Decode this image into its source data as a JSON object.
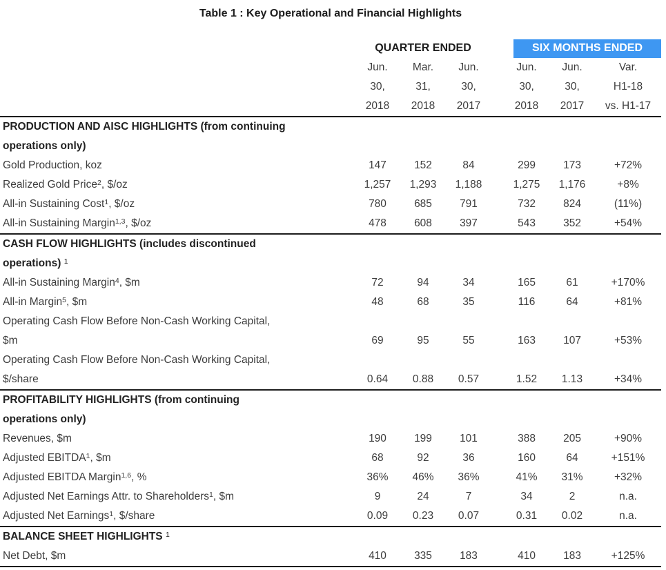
{
  "title": "Table 1 : Key Operational and Financial Highlights",
  "colors": {
    "highlight_blue": "#3e97f2",
    "rule_black": "#1c1c1c",
    "body_text": "#3d3d3d"
  },
  "table": {
    "group_headers": {
      "quarter": "QUARTER ENDED",
      "six_months": "SIX MONTHS ENDED"
    },
    "columns": [
      {
        "lines": [
          "Jun.",
          "30,",
          "2018"
        ]
      },
      {
        "lines": [
          "Mar.",
          "31,",
          "2018"
        ]
      },
      {
        "lines": [
          "Jun.",
          "30,",
          "2017"
        ]
      },
      {
        "lines": [
          "Jun.",
          "30,",
          "2018"
        ]
      },
      {
        "lines": [
          "Jun.",
          "30,",
          "2017"
        ]
      },
      {
        "lines": [
          "Var.",
          "H1-18",
          "vs. H1-17"
        ]
      }
    ],
    "sections": [
      {
        "header": "PRODUCTION AND AISC HIGHLIGHTS (from continuing\noperations only)",
        "rows": [
          {
            "label": "Gold Production, koz",
            "values": [
              "147",
              "152",
              "84",
              "299",
              "173",
              "+72%"
            ]
          },
          {
            "label": "Realized Gold Price^{2}, $/oz",
            "values": [
              "1,257",
              "1,293",
              "1,188",
              "1,275",
              "1,176",
              "+8%"
            ]
          },
          {
            "label": "All-in Sustaining Cost^{1}, $/oz",
            "values": [
              "780",
              "685",
              "791",
              "732",
              "824",
              "(11%)"
            ]
          },
          {
            "label": "All-in Sustaining Margin^{1,3}, $/oz",
            "values": [
              "478",
              "608",
              "397",
              "543",
              "352",
              "+54%"
            ]
          }
        ]
      },
      {
        "header": "CASH FLOW HIGHLIGHTS (includes discontinued\noperations) ^{1}",
        "rows": [
          {
            "label": "All-in Sustaining Margin^{4}, $m",
            "values": [
              "72",
              "94",
              "34",
              "165",
              "61",
              "+170%"
            ]
          },
          {
            "label": "All-in Margin^{5}, $m",
            "values": [
              "48",
              "68",
              "35",
              "116",
              "64",
              "+81%"
            ]
          },
          {
            "label": "Operating Cash Flow Before Non-Cash Working Capital,\n$m",
            "values": [
              "69",
              "95",
              "55",
              "163",
              "107",
              "+53%"
            ]
          },
          {
            "label": "Operating Cash Flow Before Non-Cash Working Capital,\n$/share",
            "values": [
              "0.64",
              "0.88",
              "0.57",
              "1.52",
              "1.13",
              "+34%"
            ]
          }
        ]
      },
      {
        "header": "PROFITABILITY HIGHLIGHTS (from continuing\noperations only)",
        "rows": [
          {
            "label": "Revenues, $m",
            "values": [
              "190",
              "199",
              "101",
              "388",
              "205",
              "+90%"
            ]
          },
          {
            "label": "Adjusted EBITDA^{1}, $m",
            "values": [
              "68",
              "92",
              "36",
              "160",
              "64",
              "+151%"
            ]
          },
          {
            "label": "Adjusted EBITDA Margin^{1,6}, %",
            "values": [
              "36%",
              "46%",
              "36%",
              "41%",
              "31%",
              "+32%"
            ]
          },
          {
            "label": "Adjusted Net Earnings Attr. to Shareholders^{1}, $m",
            "values": [
              "9",
              "24",
              "7",
              "34",
              "2",
              "n.a."
            ]
          },
          {
            "label": "Adjusted Net Earnings^{1}, $/share",
            "values": [
              "0.09",
              "0.23",
              "0.07",
              "0.31",
              "0.02",
              "n.a."
            ]
          }
        ]
      },
      {
        "header": "BALANCE SHEET HIGHLIGHTS ^{1}",
        "rows": [
          {
            "label": "Net Debt, $m",
            "values": [
              "410",
              "335",
              "183",
              "410",
              "183",
              "+125%"
            ]
          }
        ]
      }
    ]
  }
}
